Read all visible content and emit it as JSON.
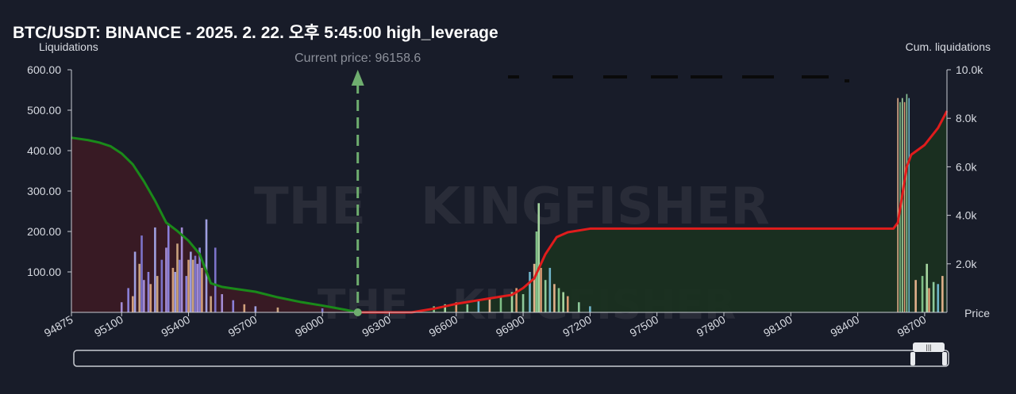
{
  "chart_data": {
    "type": "bar",
    "title": "BTC/USDT: BINANCE - 2025. 2. 22. 오후 5:45:00 high_leverage",
    "ylabel_left": "Liquidations",
    "ylabel_right": "Cum. liquidations",
    "xlabel": "Price",
    "current_price_label": "Current price: 96158.6",
    "current_price": 96158.6,
    "watermark": "THE KINGFISHER .io",
    "xlim": [
      94875,
      98800
    ],
    "ylim_left": [
      0,
      600
    ],
    "ylim_right": [
      0,
      10000
    ],
    "x_ticks": [
      94875,
      95100,
      95400,
      95700,
      96000,
      96300,
      96600,
      96900,
      97200,
      97500,
      97800,
      98100,
      98400,
      98700
    ],
    "y_ticks_left": [
      "600.00",
      "500.00",
      "400.00",
      "300.00",
      "200.00",
      "100.00"
    ],
    "y_ticks_right": [
      "10.0k",
      "8.0k",
      "6.0k",
      "4.0k",
      "2.0k"
    ],
    "grid": false,
    "colors": {
      "short_cum": "#1a8a1a",
      "long_cum": "#e01c1c",
      "short_fill": "#3a1a24",
      "long_fill": "#1a3020",
      "current_price": "#6fae6f"
    },
    "series": [
      {
        "name": "short_cum",
        "points": [
          [
            94875,
            7200
          ],
          [
            94950,
            7100
          ],
          [
            95000,
            7000
          ],
          [
            95050,
            6850
          ],
          [
            95100,
            6550
          ],
          [
            95150,
            6100
          ],
          [
            95200,
            5400
          ],
          [
            95250,
            4600
          ],
          [
            95300,
            3700
          ],
          [
            95350,
            3350
          ],
          [
            95400,
            2950
          ],
          [
            95450,
            2400
          ],
          [
            95500,
            1200
          ],
          [
            95550,
            1050
          ],
          [
            95600,
            980
          ],
          [
            95700,
            850
          ],
          [
            95800,
            620
          ],
          [
            95900,
            430
          ],
          [
            96000,
            280
          ],
          [
            96100,
            110
          ],
          [
            96158,
            0
          ]
        ]
      },
      {
        "name": "long_cum",
        "points": [
          [
            96158,
            0
          ],
          [
            96400,
            0
          ],
          [
            96500,
            150
          ],
          [
            96600,
            350
          ],
          [
            96700,
            500
          ],
          [
            96800,
            650
          ],
          [
            96850,
            720
          ],
          [
            96900,
            1000
          ],
          [
            96950,
            1400
          ],
          [
            97000,
            2400
          ],
          [
            97050,
            3100
          ],
          [
            97100,
            3300
          ],
          [
            97200,
            3450
          ],
          [
            98560,
            3450
          ],
          [
            98580,
            3700
          ],
          [
            98620,
            6000
          ],
          [
            98640,
            6500
          ],
          [
            98700,
            6900
          ],
          [
            98760,
            7600
          ],
          [
            98800,
            8300
          ]
        ]
      }
    ],
    "bars": [
      {
        "x": 95100,
        "value": 25
      },
      {
        "x": 95130,
        "value": 60
      },
      {
        "x": 95150,
        "value": 40
      },
      {
        "x": 95160,
        "value": 150
      },
      {
        "x": 95180,
        "value": 120
      },
      {
        "x": 95190,
        "value": 190
      },
      {
        "x": 95200,
        "value": 80
      },
      {
        "x": 95220,
        "value": 100
      },
      {
        "x": 95230,
        "value": 70
      },
      {
        "x": 95250,
        "value": 210
      },
      {
        "x": 95260,
        "value": 90
      },
      {
        "x": 95280,
        "value": 130
      },
      {
        "x": 95300,
        "value": 160
      },
      {
        "x": 95310,
        "value": 220
      },
      {
        "x": 95330,
        "value": 110
      },
      {
        "x": 95340,
        "value": 100
      },
      {
        "x": 95350,
        "value": 170
      },
      {
        "x": 95360,
        "value": 130
      },
      {
        "x": 95370,
        "value": 210
      },
      {
        "x": 95390,
        "value": 90
      },
      {
        "x": 95400,
        "value": 130
      },
      {
        "x": 95410,
        "value": 150
      },
      {
        "x": 95420,
        "value": 130
      },
      {
        "x": 95430,
        "value": 140
      },
      {
        "x": 95440,
        "value": 120
      },
      {
        "x": 95450,
        "value": 160
      },
      {
        "x": 95460,
        "value": 110
      },
      {
        "x": 95480,
        "value": 230
      },
      {
        "x": 95500,
        "value": 40
      },
      {
        "x": 95520,
        "value": 160
      },
      {
        "x": 95550,
        "value": 45
      },
      {
        "x": 95600,
        "value": 30
      },
      {
        "x": 95650,
        "value": 20
      },
      {
        "x": 95700,
        "value": 15
      },
      {
        "x": 95800,
        "value": 12
      },
      {
        "x": 96000,
        "value": 10
      },
      {
        "x": 96500,
        "value": 15
      },
      {
        "x": 96550,
        "value": 20
      },
      {
        "x": 96600,
        "value": 25
      },
      {
        "x": 96650,
        "value": 20
      },
      {
        "x": 96700,
        "value": 30
      },
      {
        "x": 96750,
        "value": 35
      },
      {
        "x": 96800,
        "value": 40
      },
      {
        "x": 96850,
        "value": 50
      },
      {
        "x": 96870,
        "value": 60
      },
      {
        "x": 96900,
        "value": 45
      },
      {
        "x": 96930,
        "value": 100
      },
      {
        "x": 96950,
        "value": 120
      },
      {
        "x": 96960,
        "value": 200
      },
      {
        "x": 96970,
        "value": 270
      },
      {
        "x": 96980,
        "value": 110
      },
      {
        "x": 97000,
        "value": 80
      },
      {
        "x": 97020,
        "value": 110
      },
      {
        "x": 97040,
        "value": 70
      },
      {
        "x": 97060,
        "value": 60
      },
      {
        "x": 97080,
        "value": 50
      },
      {
        "x": 97100,
        "value": 40
      },
      {
        "x": 97150,
        "value": 25
      },
      {
        "x": 97200,
        "value": 15
      },
      {
        "x": 98580,
        "value": 530
      },
      {
        "x": 98590,
        "value": 520
      },
      {
        "x": 98600,
        "value": 530
      },
      {
        "x": 98610,
        "value": 520
      },
      {
        "x": 98620,
        "value": 540
      },
      {
        "x": 98630,
        "value": 530
      },
      {
        "x": 98660,
        "value": 80
      },
      {
        "x": 98690,
        "value": 90
      },
      {
        "x": 98710,
        "value": 120
      },
      {
        "x": 98720,
        "value": 60
      },
      {
        "x": 98740,
        "value": 75
      },
      {
        "x": 98760,
        "value": 70
      },
      {
        "x": 98780,
        "value": 90
      }
    ]
  },
  "scrollbar": {
    "handle_glyph": "|||"
  }
}
